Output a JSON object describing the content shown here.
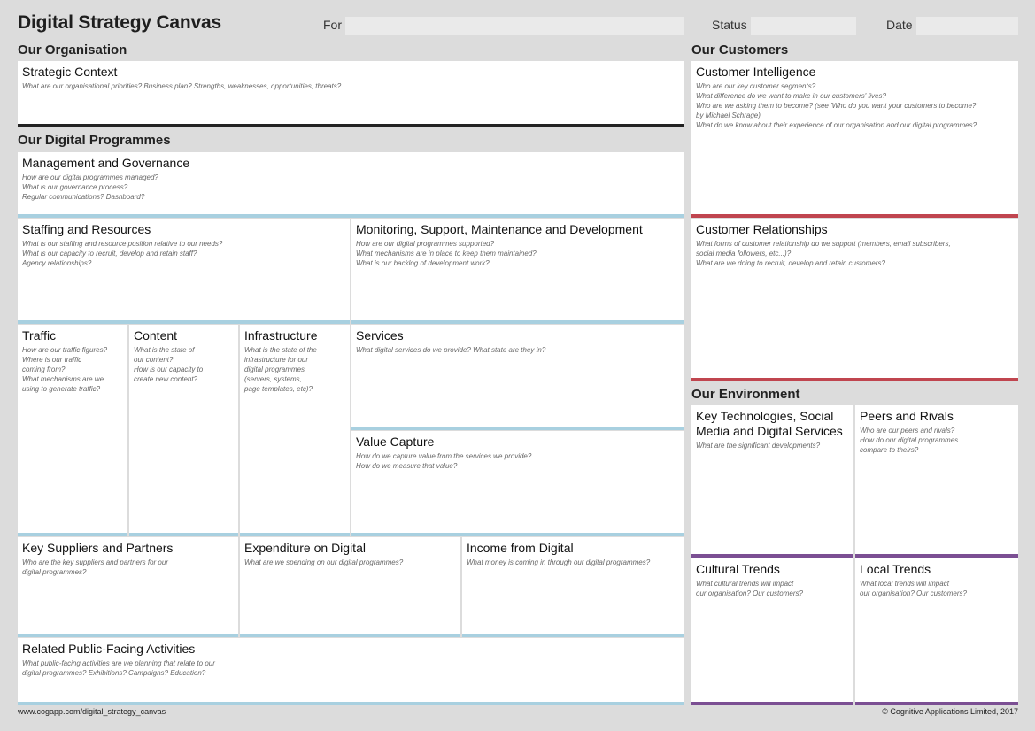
{
  "header": {
    "title": "Digital Strategy Canvas",
    "for_label": "For",
    "for_value": "",
    "status_label": "Status",
    "status_value": "",
    "date_label": "Date",
    "date_value": ""
  },
  "sections": {
    "organisation": "Our Organisation",
    "programmes": "Our Digital Programmes",
    "customers": "Our Customers",
    "environment": "Our Environment"
  },
  "boxes": {
    "strategic_context": {
      "title": "Strategic Context",
      "questions": "What are our organisational priorities? Business plan? Strengths, weaknesses, opportunities, threats?"
    },
    "management": {
      "title": "Management and Governance",
      "questions": "How are our digital programmes managed?\nWhat is our governance process?\nRegular communications? Dashboard?"
    },
    "staffing": {
      "title": "Staffing and Resources",
      "questions": "What is our staffing and resource position relative to our needs?\nWhat is our capacity to recruit, develop and retain staff?\nAgency relationships?"
    },
    "monitoring": {
      "title": "Monitoring, Support, Maintenance and Development",
      "questions": "How are our digital programmes supported?\nWhat mechanisms are in place to keep them maintained?\nWhat is our backlog of development work?"
    },
    "traffic": {
      "title": "Traffic",
      "questions": "How are our traffic figures?\nWhere is our traffic\ncoming from?\nWhat mechanisms are we\nusing to generate traffic?"
    },
    "content": {
      "title": "Content",
      "questions": "What is the state of\nour content?\nHow is our capacity to\ncreate new content?"
    },
    "infrastructure": {
      "title": "Infrastructure",
      "questions": "What is the state of the\ninfrastructure for our\ndigital programmes\n(servers, systems,\npage templates, etc)?"
    },
    "services": {
      "title": "Services",
      "questions": "What digital services do we provide? What state are they in?"
    },
    "value_capture": {
      "title": "Value Capture",
      "questions": "How do we capture value from the services we provide?\nHow do we measure that value?"
    },
    "suppliers": {
      "title": "Key Suppliers and Partners",
      "questions": "Who are the key suppliers and partners for our\ndigital programmes?"
    },
    "expenditure": {
      "title": "Expenditure on Digital",
      "questions": "What are we spending on our digital programmes?"
    },
    "income": {
      "title": "Income from Digital",
      "questions": "What money is coming in through our digital programmes?"
    },
    "public_facing": {
      "title": "Related Public-Facing Activities",
      "questions": "What public-facing activities are we planning that relate to our\ndigital programmes? Exhibitions? Campaigns? Education?"
    },
    "customer_intelligence": {
      "title": "Customer Intelligence",
      "questions": "Who are our key customer segments?\nWhat difference do we want to make in our customers' lives?\nWho are we asking them to become? (see 'Who do you want your customers to become?'\nby Michael Schrage)\nWhat do we know about their experience of our organisation and our digital programmes?"
    },
    "customer_relationships": {
      "title": "Customer Relationships",
      "questions": "What forms of customer relationship do we support (members, email subscribers,\nsocial media followers, etc...)?\nWhat are we doing to recruit, develop and retain customers?"
    },
    "key_tech": {
      "title": "Key Technologies, Social Media and Digital Services",
      "questions": "What are the significant developments?"
    },
    "peers": {
      "title": "Peers and Rivals",
      "questions": "Who are our peers and rivals?\nHow do our digital programmes\ncompare to theirs?"
    },
    "cultural": {
      "title": "Cultural Trends",
      "questions": "What cultural trends will impact\nour organisation? Our customers?"
    },
    "local": {
      "title": "Local Trends",
      "questions": "What local trends will impact\nour organisation? Our customers?"
    }
  },
  "footer": {
    "url": "www.cogapp.com/digital_strategy_canvas",
    "copyright": "© Cognitive Applications Limited, 2017"
  }
}
